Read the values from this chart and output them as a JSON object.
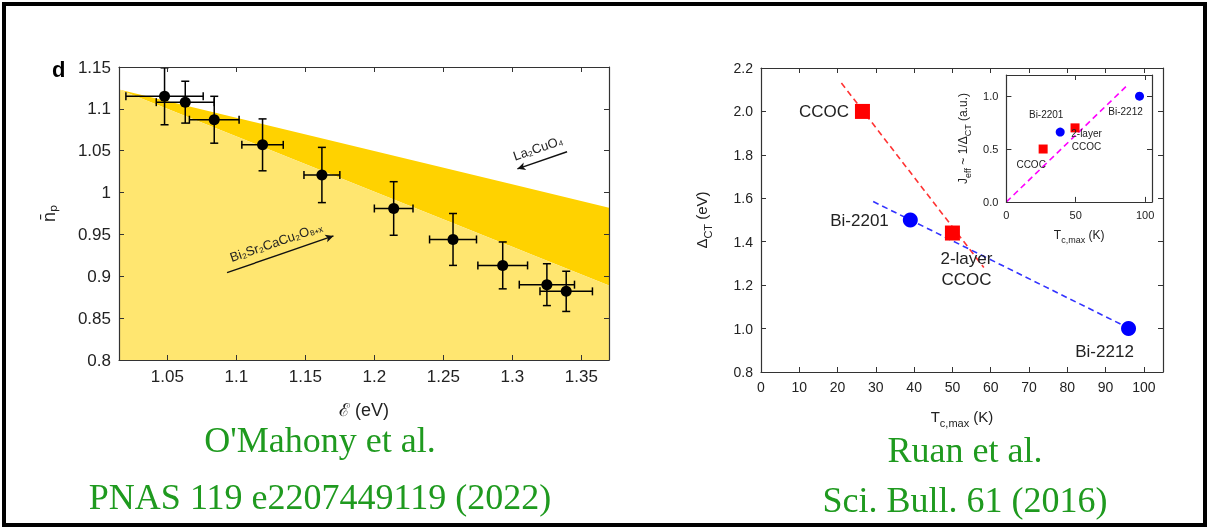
{
  "chart_data": [
    {
      "type": "scatter",
      "title": "d",
      "xlabel": "ℰ (eV)",
      "ylabel": "n̄ₚ",
      "xlim": [
        1.015,
        1.37
      ],
      "ylim": [
        0.8,
        1.15
      ],
      "xticks": [
        1.05,
        1.1,
        1.15,
        1.2,
        1.25,
        1.3,
        1.35
      ],
      "yticks": [
        0.8,
        0.85,
        0.9,
        0.95,
        1,
        1.05,
        1.1,
        1.15
      ],
      "annotations": [
        "La₂CuO₄",
        "Bi₂Sr₂CaCu₂O₈₊ₓ",
        "O'Mahony et al.",
        "PNAS 119 e2207449119 (2022)"
      ],
      "series": [
        {
          "type": "area",
          "color": "#ffd200",
          "x": [
            1.015,
            1.37
          ],
          "values": [
            1.123,
            0.982
          ]
        },
        {
          "type": "area",
          "color": "#ffe670",
          "x": [
            1.015,
            1.37
          ],
          "values": [
            1.123,
            0.889
          ]
        },
        {
          "color": "#000000",
          "marker": "circle",
          "x": [
            1.048,
            1.063,
            1.084,
            1.119,
            1.162,
            1.214,
            1.257,
            1.293,
            1.325,
            1.339
          ],
          "values": [
            1.115,
            1.108,
            1.087,
            1.057,
            1.021,
            0.981,
            0.944,
            0.913,
            0.89,
            0.882
          ],
          "errors": [
            0.034,
            0.025,
            0.028,
            0.031,
            0.033,
            0.032,
            0.031,
            0.028,
            0.025,
            0.024
          ],
          "xerrors": [
            0.028,
            0.021,
            0.018,
            0.015,
            0.013,
            0.014,
            0.017,
            0.018,
            0.02,
            0.019
          ]
        }
      ]
    },
    {
      "type": "scatter",
      "xlabel": "T$_{c,max}$ (K)",
      "ylabel": "Δ$_{CT}$ (eV)",
      "xlim": [
        0,
        105
      ],
      "ylim": [
        0.8,
        2.2
      ],
      "xticks": [
        0,
        10,
        20,
        30,
        40,
        50,
        60,
        70,
        80,
        90,
        100
      ],
      "yticks": [
        0.8,
        {
          "value": 1,
          "label": "1.0"
        },
        1.2,
        1.4,
        1.6,
        1.8,
        {
          "value": 2,
          "label": "2.0"
        },
        2.2
      ],
      "annotations": [
        "Ruan et al.",
        "Sci. Bull. 61 (2016)"
      ],
      "series": [
        {
          "type": "line",
          "color": "#ff3333",
          "line_style": "dashed",
          "marker": "none",
          "x": [
            21,
            58.2
          ],
          "values": [
            2.131,
            1.281
          ]
        },
        {
          "type": "line",
          "color": "#3333ff",
          "line_style": "dashed",
          "marker": "none",
          "x": [
            29.3,
            94
          ],
          "values": [
            1.585,
            1.02
          ]
        },
        {
          "name": "CCOC",
          "color": "#ff0000",
          "marker": "square",
          "x": [
            26.5
          ],
          "values": [
            2.0
          ]
        },
        {
          "name": "2-layer\nCCOC",
          "color": "#ff0000",
          "marker": "square",
          "x": [
            50
          ],
          "values": [
            1.44
          ]
        },
        {
          "name": "Bi-2201",
          "color": "#0000ff",
          "marker": "circle",
          "x": [
            39
          ],
          "values": [
            1.5
          ]
        },
        {
          "name": "Bi-2212",
          "color": "#0000ff",
          "marker": "circle",
          "x": [
            96
          ],
          "values": [
            1.0
          ]
        }
      ]
    },
    {
      "type": "scatter",
      "xlabel": "T$_{c,max}$ (K)",
      "ylabel": "J$_{eff}$ ~ 1/Δ$_{CT}$ (a.u.)",
      "xlim": [
        0,
        105
      ],
      "ylim": [
        0,
        1.2
      ],
      "xticks": [
        0,
        50,
        100
      ],
      "yticks": [
        {
          "value": 0,
          "label": "0.0"
        },
        0.5,
        {
          "value": 1,
          "label": "1.0"
        }
      ],
      "series": [
        {
          "type": "line",
          "color": "#ff00ff",
          "line_style": "dashed",
          "marker": "none",
          "x": [
            0,
            87
          ],
          "values": [
            0,
            1.1
          ]
        },
        {
          "name": "CCOC",
          "color": "#ff0000",
          "marker": "square",
          "x": [
            26.5
          ],
          "values": [
            0.5
          ]
        },
        {
          "name": "2-layer\nCCOC",
          "color": "#ff0000",
          "marker": "square",
          "x": [
            49.5
          ],
          "values": [
            0.7
          ]
        },
        {
          "name": "Bi-2201",
          "color": "#0000ff",
          "marker": "circle",
          "x": [
            38.8
          ],
          "values": [
            0.66
          ]
        },
        {
          "name": "Bi-2212",
          "color": "#0000ff",
          "marker": "circle",
          "x": [
            96
          ],
          "values": [
            1.0
          ]
        }
      ]
    }
  ]
}
